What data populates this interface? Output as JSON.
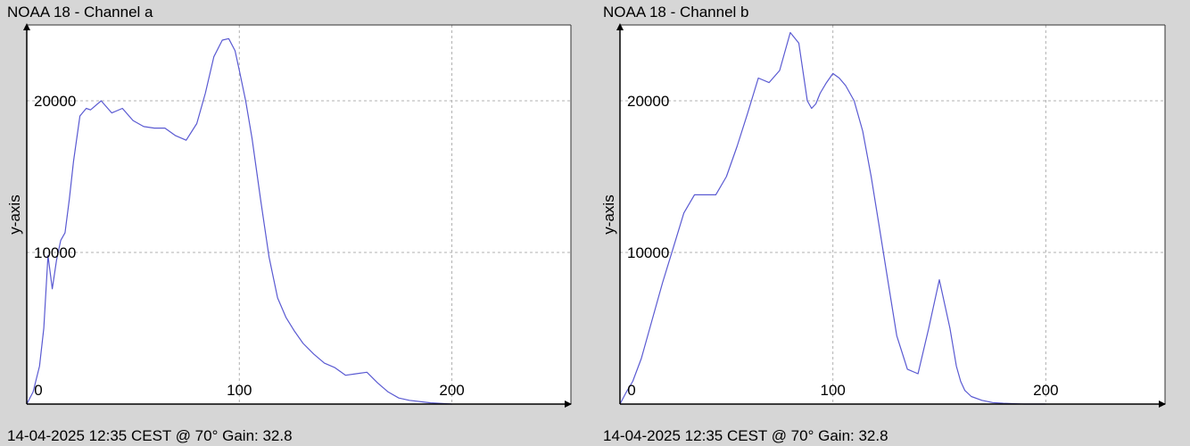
{
  "chart_data": [
    {
      "type": "line",
      "title": "NOAA 18 - Channel a",
      "footer": "14-04-2025 12:35 CEST @ 70° Gain: 32.8",
      "ylabel": "y-axis",
      "xlim": [
        0,
        256
      ],
      "ylim": [
        0,
        25000
      ],
      "x_ticks": [
        0,
        100,
        200
      ],
      "x_tick_labels": [
        "0",
        "100",
        "200"
      ],
      "y_ticks": [
        10000,
        20000
      ],
      "y_tick_labels": [
        "10000",
        "20000"
      ],
      "grid": true,
      "colors": {
        "line": "#5a5ad2",
        "grid": "#b0b0b0",
        "axis": "#000000"
      },
      "series": [
        {
          "x": [
            0,
            3,
            6,
            8,
            10,
            12,
            14,
            16,
            18,
            20,
            22,
            25,
            28,
            30,
            35,
            40,
            45,
            50,
            55,
            60,
            65,
            70,
            75,
            80,
            84,
            88,
            92,
            95,
            98,
            100,
            103,
            106,
            110,
            114,
            118,
            122,
            126,
            130,
            135,
            140,
            145,
            150,
            155,
            160,
            165,
            170,
            175,
            180,
            190,
            200
          ],
          "y": [
            0,
            800,
            2500,
            5000,
            9800,
            7600,
            9500,
            10800,
            11300,
            13500,
            16000,
            19000,
            19500,
            19400,
            20000,
            19200,
            19500,
            18700,
            18300,
            18200,
            18200,
            17700,
            17400,
            18500,
            20500,
            22900,
            24000,
            24100,
            23300,
            22000,
            20000,
            17500,
            13500,
            9700,
            7000,
            5700,
            4800,
            4000,
            3300,
            2700,
            2400,
            1900,
            2000,
            2100,
            1400,
            800,
            400,
            250,
            80,
            0
          ]
        }
      ]
    },
    {
      "type": "line",
      "title": "NOAA 18 - Channel b",
      "footer": "14-04-2025 12:35 CEST @ 70° Gain: 32.8",
      "ylabel": "y-axis",
      "xlim": [
        0,
        256
      ],
      "ylim": [
        0,
        25000
      ],
      "x_ticks": [
        0,
        100,
        200
      ],
      "x_tick_labels": [
        "0",
        "100",
        "200"
      ],
      "y_ticks": [
        10000,
        20000
      ],
      "y_tick_labels": [
        "10000",
        "20000"
      ],
      "grid": true,
      "colors": {
        "line": "#5a5ad2",
        "grid": "#b0b0b0",
        "axis": "#000000"
      },
      "series": [
        {
          "x": [
            0,
            3,
            6,
            10,
            15,
            20,
            25,
            30,
            35,
            40,
            45,
            50,
            55,
            60,
            65,
            70,
            75,
            80,
            84,
            88,
            90,
            92,
            94,
            97,
            100,
            103,
            106,
            110,
            114,
            118,
            122,
            126,
            130,
            135,
            140,
            145,
            150,
            155,
            158,
            160,
            162,
            165,
            170,
            175,
            180,
            190,
            200
          ],
          "y": [
            0,
            800,
            1500,
            3000,
            5500,
            8000,
            10300,
            12600,
            13800,
            13800,
            13800,
            15000,
            17000,
            19200,
            21500,
            21200,
            22000,
            24500,
            23800,
            20000,
            19500,
            19800,
            20500,
            21200,
            21800,
            21500,
            21000,
            20000,
            18000,
            15000,
            11500,
            8000,
            4500,
            2300,
            2000,
            5000,
            8200,
            5000,
            2500,
            1500,
            900,
            500,
            250,
            100,
            50,
            0,
            0
          ]
        }
      ]
    }
  ]
}
